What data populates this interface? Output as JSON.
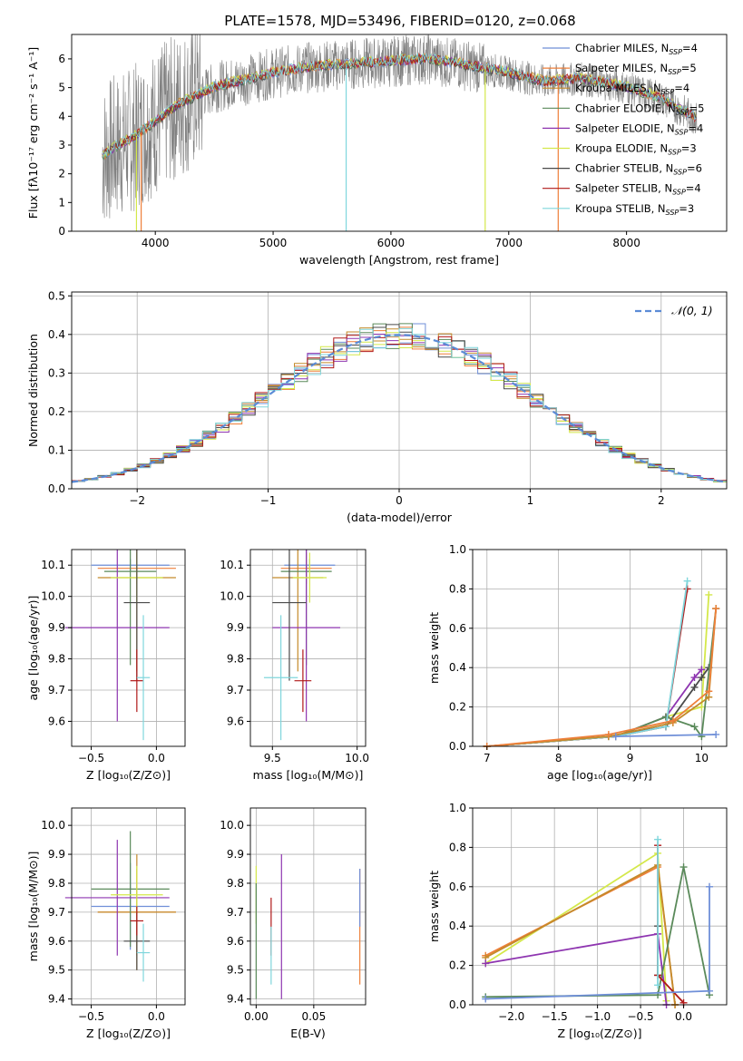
{
  "figure": {
    "title": "PLATE=1578, MJD=53496, FIBERID=0120, z=0.068"
  },
  "legend_entries": [
    {
      "name": "Chabrier MILES, N",
      "sub": "SSP",
      "suffix": "=4",
      "color": "#6f8fd8"
    },
    {
      "name": "Salpeter MILES, N",
      "sub": "SSP",
      "suffix": "=5",
      "color": "#ee7f3a"
    },
    {
      "name": "Kroupa MILES, N",
      "sub": "SSP",
      "suffix": "=4",
      "color": "#c48a2a"
    },
    {
      "name": "Chabrier ELODIE, N",
      "sub": "SSP",
      "suffix": "=5",
      "color": "#5a8a5a"
    },
    {
      "name": "Salpeter ELODIE, N",
      "sub": "SSP",
      "suffix": "=4",
      "color": "#8e35b0"
    },
    {
      "name": "Kroupa ELODIE, N",
      "sub": "SSP",
      "suffix": "=3",
      "color": "#d4e84a"
    },
    {
      "name": "Chabrier STELIB, N",
      "sub": "SSP",
      "suffix": "=6",
      "color": "#4a4a4a"
    },
    {
      "name": "Salpeter STELIB, N",
      "sub": "SSP",
      "suffix": "=4",
      "color": "#b01818"
    },
    {
      "name": "Kroupa STELIB, N",
      "sub": "SSP",
      "suffix": "=3",
      "color": "#7fd6dc"
    }
  ],
  "chart_data": [
    {
      "id": "spectrum",
      "type": "line",
      "xlabel": "wavelength [Angstrom, rest frame]",
      "ylabel": "Flux [fλ10⁻¹⁷ erg cm⁻² s⁻¹ A⁻¹]",
      "xlim": [
        3290,
        8850
      ],
      "ylim": [
        0,
        6.85
      ],
      "xticks": [
        "4000",
        "5000",
        "6000",
        "7000",
        "8000"
      ],
      "yticks": [
        "0",
        "1",
        "2",
        "3",
        "4",
        "5",
        "6"
      ],
      "continuum": {
        "x": [
          3550,
          3650,
          3800,
          4000,
          4200,
          4500,
          4800,
          5000,
          5300,
          5600,
          6000,
          6300,
          6600,
          7000,
          7300,
          7600,
          8000,
          8300,
          8600
        ],
        "y": [
          2.6,
          2.9,
          3.2,
          3.8,
          4.4,
          5.0,
          5.3,
          5.5,
          5.7,
          5.8,
          5.9,
          6.0,
          5.8,
          5.5,
          5.2,
          5.3,
          5.0,
          4.6,
          3.9
        ]
      },
      "grid": false,
      "legend": "top-right"
    },
    {
      "id": "residuals",
      "type": "line",
      "xlabel": "(data-model)/error",
      "ylabel": "Normed distribution",
      "xlim": [
        -2.5,
        2.5
      ],
      "ylim": [
        0,
        0.51
      ],
      "xticks": [
        "−2",
        "−1",
        "0",
        "1",
        "2"
      ],
      "yticks": [
        "0.0",
        "0.1",
        "0.2",
        "0.3",
        "0.4",
        "0.5"
      ],
      "gauss_label": "𝒩(0, 1)",
      "grid": true,
      "legend": "top-right"
    },
    {
      "id": "age-vs-Z",
      "type": "scatter",
      "xlabel": "Z [log₁₀(Z/Z⊙)]",
      "ylabel": "age  [log₁₀(age/yr)]",
      "xlim": [
        -0.65,
        0.22
      ],
      "ylim": [
        9.52,
        10.15
      ],
      "xticks": [
        "−0.5",
        "0.0"
      ],
      "yticks": [
        "9.6",
        "9.7",
        "9.8",
        "9.9",
        "10.0",
        "10.1"
      ],
      "points": [
        {
          "series": "Chabrier MILES",
          "x": -0.2,
          "y": 10.1,
          "xerr": 0.3,
          "yerr": 0.02
        },
        {
          "series": "Salpeter MILES",
          "x": -0.15,
          "y": 10.09,
          "xerr": 0.3,
          "yerr": 0.05
        },
        {
          "series": "Kroupa MILES",
          "x": -0.15,
          "y": 10.06,
          "xerr": 0.3,
          "yerr": 0.3
        },
        {
          "series": "Chabrier ELODIE",
          "x": -0.2,
          "y": 10.08,
          "xerr": 0.2,
          "yerr": 0.3
        },
        {
          "series": "Salpeter ELODIE",
          "x": -0.3,
          "y": 9.9,
          "xerr": 0.4,
          "yerr": 0.3
        },
        {
          "series": "Kroupa ELODIE",
          "x": -0.15,
          "y": 10.06,
          "xerr": 0.2,
          "yerr": 0.08
        },
        {
          "series": "Chabrier STELIB",
          "x": -0.15,
          "y": 9.98,
          "xerr": 0.1,
          "yerr": 0.25
        },
        {
          "series": "Salpeter STELIB",
          "x": -0.15,
          "y": 9.73,
          "xerr": 0.05,
          "yerr": 0.1
        },
        {
          "series": "Kroupa STELIB",
          "x": -0.1,
          "y": 9.74,
          "xerr": 0.05,
          "yerr": 0.2
        }
      ]
    },
    {
      "id": "age-vs-mass",
      "type": "scatter",
      "xlabel": "mass [log₁₀(M/M⊙)]",
      "ylabel": "",
      "xlim": [
        9.37,
        10.05
      ],
      "ylim": [
        9.52,
        10.15
      ],
      "xticks": [
        "9.5",
        "10.0"
      ],
      "yticks": [
        "9.6",
        "9.7",
        "9.8",
        "9.9",
        "10.0",
        "10.1"
      ],
      "points": [
        {
          "series": "Chabrier MILES",
          "x": 9.72,
          "y": 10.1,
          "xerr": 0.15,
          "yerr": 0.02
        },
        {
          "series": "Salpeter MILES",
          "x": 9.7,
          "y": 10.09,
          "xerr": 0.15,
          "yerr": 0.05
        },
        {
          "series": "Kroupa MILES",
          "x": 9.65,
          "y": 10.06,
          "xerr": 0.15,
          "yerr": 0.3
        },
        {
          "series": "Chabrier ELODIE",
          "x": 9.7,
          "y": 10.08,
          "xerr": 0.15,
          "yerr": 0.3
        },
        {
          "series": "Salpeter ELODIE",
          "x": 9.7,
          "y": 9.9,
          "xerr": 0.2,
          "yerr": 0.3
        },
        {
          "series": "Kroupa ELODIE",
          "x": 9.72,
          "y": 10.06,
          "xerr": 0.1,
          "yerr": 0.08
        },
        {
          "series": "Chabrier STELIB",
          "x": 9.6,
          "y": 9.98,
          "xerr": 0.1,
          "yerr": 0.25
        },
        {
          "series": "Salpeter STELIB",
          "x": 9.68,
          "y": 9.73,
          "xerr": 0.05,
          "yerr": 0.1
        },
        {
          "series": "Kroupa STELIB",
          "x": 9.55,
          "y": 9.74,
          "xerr": 0.1,
          "yerr": 0.2
        }
      ]
    },
    {
      "id": "mass-weight-vs-age",
      "type": "line",
      "xlabel": "age  [log₁₀(age/yr)]",
      "ylabel": "mass weight",
      "xlim": [
        6.8,
        10.35
      ],
      "ylim": [
        0,
        1
      ],
      "xticks": [
        "7",
        "8",
        "9",
        "10"
      ],
      "yticks": [
        "0.0",
        "0.2",
        "0.4",
        "0.6",
        "0.8",
        "1.0"
      ],
      "series": [
        {
          "name": "Kroupa ELODIE",
          "x": [
            7.0,
            8.8,
            9.5,
            10.0,
            10.1
          ],
          "y": [
            0.0,
            0.05,
            0.15,
            0.2,
            0.77
          ]
        },
        {
          "name": "Chabrier STELIB",
          "x": [
            7.0,
            8.7,
            9.5,
            9.9,
            10.0,
            10.1
          ],
          "y": [
            0.0,
            0.05,
            0.1,
            0.3,
            0.35,
            0.4
          ]
        },
        {
          "name": "Salpeter ELODIE",
          "x": [
            7.0,
            8.8,
            9.5,
            9.9,
            10.0
          ],
          "y": [
            0.0,
            0.05,
            0.15,
            0.35,
            0.39
          ]
        },
        {
          "name": "Chabrier ELODIE",
          "x": [
            7.0,
            8.8,
            9.5,
            9.9,
            10.0,
            10.2
          ],
          "y": [
            0.0,
            0.05,
            0.15,
            0.1,
            0.05,
            0.7
          ]
        },
        {
          "name": "Salpeter STELIB",
          "x": [
            7.0,
            8.8,
            9.5,
            9.8
          ],
          "y": [
            0.0,
            0.05,
            0.1,
            0.8
          ]
        },
        {
          "name": "Kroupa STELIB",
          "x": [
            7.0,
            8.8,
            9.5,
            9.8
          ],
          "y": [
            0.0,
            0.05,
            0.1,
            0.84
          ]
        },
        {
          "name": "Kroupa MILES",
          "x": [
            7.0,
            8.7,
            9.6,
            10.1,
            10.2
          ],
          "y": [
            0.0,
            0.05,
            0.12,
            0.25,
            0.7
          ]
        },
        {
          "name": "Salpeter MILES",
          "x": [
            7.0,
            8.7,
            9.6,
            10.1,
            10.2
          ],
          "y": [
            0.0,
            0.06,
            0.13,
            0.28,
            0.7
          ]
        },
        {
          "name": "Chabrier MILES",
          "x": [
            8.8,
            10.2
          ],
          "y": [
            0.05,
            0.06
          ]
        }
      ],
      "grid": true
    },
    {
      "id": "mass-vs-Z",
      "type": "scatter",
      "xlabel": "Z [log₁₀(Z/Z⊙)]",
      "ylabel": "mass [log₁₀(M/M⊙)]",
      "xlim": [
        -0.65,
        0.22
      ],
      "ylim": [
        9.38,
        10.06
      ],
      "xticks": [
        "−0.5",
        "0.0"
      ],
      "yticks": [
        "9.4",
        "9.5",
        "9.6",
        "9.7",
        "9.8",
        "9.9",
        "10.0"
      ],
      "points": [
        {
          "series": "Chabrier MILES",
          "x": -0.2,
          "y": 9.72,
          "xerr": 0.3,
          "yerr": 0.15
        },
        {
          "series": "Salpeter MILES",
          "x": -0.15,
          "y": 9.7,
          "xerr": 0.3,
          "yerr": 0.15
        },
        {
          "series": "Kroupa MILES",
          "x": -0.15,
          "y": 9.7,
          "xerr": 0.3,
          "yerr": 0.2
        },
        {
          "series": "Chabrier ELODIE",
          "x": -0.2,
          "y": 9.78,
          "xerr": 0.3,
          "yerr": 0.2
        },
        {
          "series": "Salpeter ELODIE",
          "x": -0.3,
          "y": 9.75,
          "xerr": 0.4,
          "yerr": 0.2
        },
        {
          "series": "Kroupa ELODIE",
          "x": -0.15,
          "y": 9.76,
          "xerr": 0.2,
          "yerr": 0.1
        },
        {
          "series": "Chabrier STELIB",
          "x": -0.15,
          "y": 9.6,
          "xerr": 0.1,
          "yerr": 0.1
        },
        {
          "series": "Salpeter STELIB",
          "x": -0.15,
          "y": 9.67,
          "xerr": 0.05,
          "yerr": 0.05
        },
        {
          "series": "Kroupa STELIB",
          "x": -0.1,
          "y": 9.56,
          "xerr": 0.05,
          "yerr": 0.1
        }
      ]
    },
    {
      "id": "mass-vs-EBV",
      "type": "scatter",
      "xlabel": "E(B-V)",
      "ylabel": "",
      "xlim": [
        -0.005,
        0.095
      ],
      "ylim": [
        9.38,
        10.06
      ],
      "xticks": [
        "0.00",
        "0.05"
      ],
      "yticks": [
        "9.4",
        "9.5",
        "9.6",
        "9.7",
        "9.8",
        "9.9",
        "10.0"
      ],
      "points": [
        {
          "series": "Salpeter ELODIE",
          "x": 0.022,
          "y": 9.65,
          "xerr": 0,
          "yerr": 0.25
        },
        {
          "series": "Salpeter STELIB",
          "x": 0.013,
          "y": 9.65,
          "xerr": 0,
          "yerr": 0.1
        },
        {
          "series": "Kroupa STELIB",
          "x": 0.013,
          "y": 9.55,
          "xerr": 0,
          "yerr": 0.1
        },
        {
          "series": "Kroupa ELODIE",
          "x": 0.0,
          "y": 9.76,
          "xerr": 0,
          "yerr": 0.1
        },
        {
          "series": "Chabrier ELODIE",
          "x": 0.0,
          "y": 9.6,
          "xerr": 0,
          "yerr": 0.2
        },
        {
          "series": "Salpeter MILES",
          "x": 0.09,
          "y": 9.65,
          "xerr": 0,
          "yerr": 0.2
        },
        {
          "series": "Chabrier MILES",
          "x": 0.09,
          "y": 9.75,
          "xerr": 0,
          "yerr": 0.1
        }
      ]
    },
    {
      "id": "mass-weight-vs-Z",
      "type": "line",
      "xlabel": "Z [log₁₀(Z/Z⊙)]",
      "ylabel": "mass weight",
      "xlim": [
        -2.45,
        0.5
      ],
      "ylim": [
        0,
        1
      ],
      "xticks": [
        "−2.0",
        "−1.5",
        "−1.0",
        "−0.5",
        "0.0"
      ],
      "yticks": [
        "0.0",
        "0.2",
        "0.4",
        "0.6",
        "0.8",
        "1.0"
      ],
      "series": [
        {
          "name": "Kroupa ELODIE",
          "x": [
            -2.3,
            -0.3,
            -0.2
          ],
          "y": [
            0.21,
            0.77,
            0.02
          ]
        },
        {
          "name": "Salpeter MILES",
          "x": [
            -2.3,
            -0.3,
            -0.1
          ],
          "y": [
            0.25,
            0.7,
            0.0
          ]
        },
        {
          "name": "Kroupa MILES",
          "x": [
            -2.3,
            -0.3,
            -0.1
          ],
          "y": [
            0.24,
            0.71,
            0.0
          ]
        },
        {
          "name": "Salpeter ELODIE",
          "x": [
            -2.3,
            -0.3,
            -0.2
          ],
          "y": [
            0.21,
            0.36,
            0.0
          ]
        },
        {
          "name": "Chabrier ELODIE",
          "x": [
            -2.3,
            -0.3,
            0.0,
            0.3
          ],
          "y": [
            0.04,
            0.05,
            0.7,
            0.05
          ]
        },
        {
          "name": "Chabrier STELIB",
          "x": [
            -0.3,
            -0.3
          ],
          "y": [
            0.15,
            0.4
          ]
        },
        {
          "name": "Salpeter STELIB",
          "x": [
            -0.3,
            -0.3,
            0.0
          ],
          "y": [
            0.81,
            0.15,
            0.01
          ]
        },
        {
          "name": "Kroupa STELIB",
          "x": [
            -0.3,
            -0.3
          ],
          "y": [
            0.1,
            0.84
          ]
        },
        {
          "name": "Chabrier MILES",
          "x": [
            -2.3,
            0.3,
            0.3
          ],
          "y": [
            0.03,
            0.07,
            0.6
          ]
        }
      ],
      "grid": true
    }
  ]
}
